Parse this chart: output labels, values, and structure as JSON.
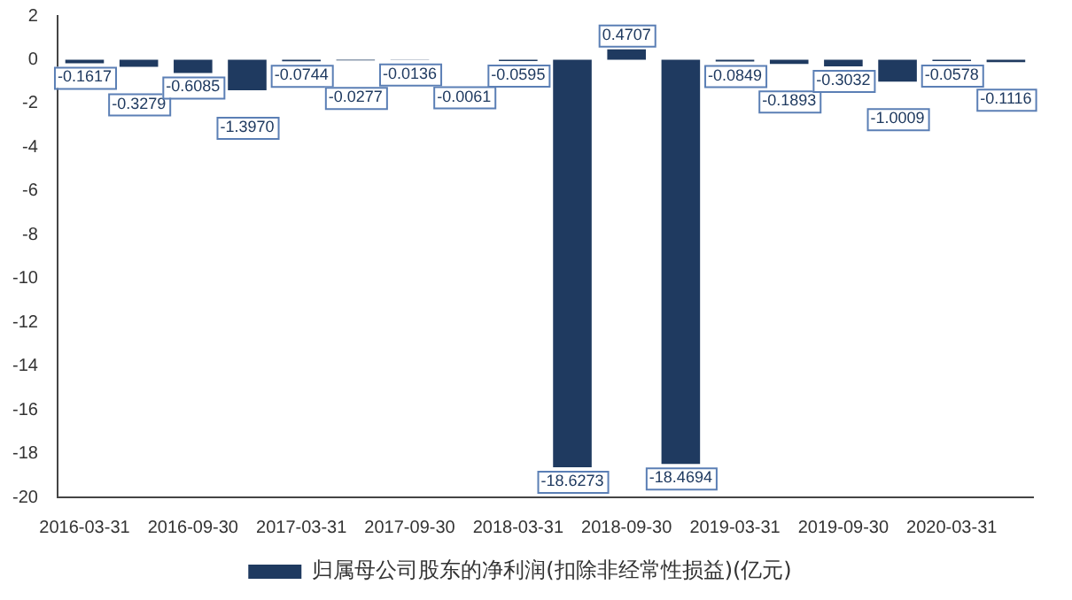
{
  "chart_data": {
    "type": "bar",
    "categories": [
      "2016-03-31",
      null,
      "2016-09-30",
      null,
      "2017-03-31",
      null,
      "2017-09-30",
      null,
      "2018-03-31",
      null,
      "2018-09-30",
      null,
      "2019-03-31",
      null,
      "2019-09-30",
      null,
      "2020-03-31",
      null
    ],
    "series": [
      {
        "name": "归属母公司股东的净利润(扣除非经常性损益)(亿元)",
        "color": "#1f3a60",
        "values": [
          -0.1617,
          -0.3279,
          -0.6085,
          -1.397,
          -0.0744,
          -0.0277,
          -0.0136,
          -0.0061,
          -0.0595,
          -18.6273,
          0.4707,
          -18.4694,
          -0.0849,
          -0.1893,
          -0.3032,
          -1.0009,
          -0.0578,
          -0.1116
        ],
        "value_labels": [
          "-0.1617",
          "-0.3279",
          "-0.6085",
          "-1.3970",
          "-0.0744",
          "-0.0277",
          "-0.0136",
          "-0.0061",
          "-0.0595",
          "-18.6273",
          "0.4707",
          "-18.4694",
          "-0.0849",
          "-0.1893",
          "-0.3032",
          "-1.0009",
          "-0.0578",
          "-0.1116"
        ]
      }
    ],
    "ylim": [
      -20,
      2
    ],
    "yticks": [
      -20,
      -18,
      -16,
      -14,
      -12,
      -10,
      -8,
      -6,
      -4,
      -2,
      0,
      2
    ],
    "grid": false,
    "legend": "bottom"
  }
}
